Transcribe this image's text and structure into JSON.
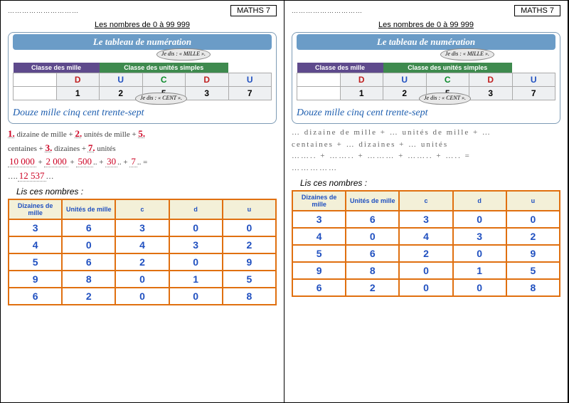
{
  "badge": "MATHS 7",
  "dots": "…………………………",
  "subtitle": "Les nombres de 0 à 99 999",
  "panel_title": "Le tableau de numération",
  "bubble_top": "Je dis :\n« MILLE ».",
  "bubble_bot": "Je dis :\n« CENT ».",
  "th_mille": "Classe des mille",
  "th_simple": "Classe des unités simples",
  "cdu": {
    "c": "C",
    "d": "D",
    "u": "U"
  },
  "sample": [
    "1",
    "2",
    "5",
    "3",
    "7"
  ],
  "cursive": "Douze mille cinq cent trente-sept",
  "decomp_left": {
    "line1a": "1.",
    "line1b": "dizaine de mille +",
    "line1c": "2.",
    "line1d": "unités de mille +",
    "line1e": "5.",
    "line2a": "centaines +",
    "line2b": "3.",
    "line2c": "dizaines +",
    "line2d": "7.",
    "line2e": "unités",
    "line3a": "10 000",
    "line3b": "+",
    "line3c": "2 000",
    "line3d": "+",
    "line3e": "500",
    "line3f": "+",
    "line3g": "30",
    "line3h": "+",
    "line3i": "7",
    "line3j": "=",
    "line4": "12 537"
  },
  "decomp_right": {
    "line1": "… dizaine de mille  +  … unités de mille  +  …",
    "line2": "centaines  +  … dizaines  +  … unités",
    "line3": "……..  +  ……..  +  ………  +  ……..  +  …..   =",
    "line4": "……………"
  },
  "listitle": "Lis ces nombres :",
  "read_headers": [
    "Dizaines de mille",
    "Unités de mille",
    "c",
    "d",
    "u"
  ],
  "read_rows": [
    [
      "3",
      "6",
      "3",
      "0",
      "0"
    ],
    [
      "4",
      "0",
      "4",
      "3",
      "2"
    ],
    [
      "5",
      "6",
      "2",
      "0",
      "9"
    ],
    [
      "9",
      "8",
      "0",
      "1",
      "5"
    ],
    [
      "6",
      "2",
      "0",
      "0",
      "8"
    ]
  ]
}
